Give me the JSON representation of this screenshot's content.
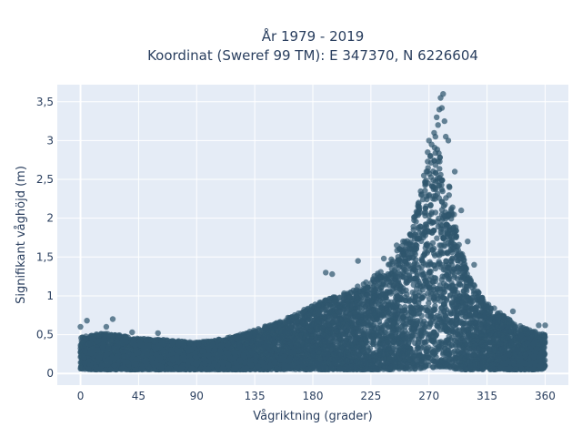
{
  "chart_data": {
    "type": "scatter",
    "title_line1": "År 1979 - 2019",
    "title_line2": "Koordinat (Sweref 99 TM): E 347370, N 6226604",
    "xlabel": "Vågriktning (grader)",
    "ylabel": "Signifikant våghöjd (m)",
    "xlim": [
      -18,
      378
    ],
    "ylim": [
      -0.15,
      3.72
    ],
    "x_ticks": [
      0,
      45,
      90,
      135,
      180,
      225,
      270,
      315,
      360
    ],
    "x_tick_labels": [
      "0",
      "45",
      "90",
      "135",
      "180",
      "225",
      "270",
      "315",
      "360"
    ],
    "y_ticks": [
      0,
      0.5,
      1,
      1.5,
      2,
      2.5,
      3,
      3.5
    ],
    "y_tick_labels": [
      "0",
      "0,5",
      "1",
      "1,5",
      "2",
      "2,5",
      "3",
      "3,5"
    ],
    "grid": true,
    "marker_color": "#2f566e",
    "background_color": "#e5ecf6",
    "envelope": {
      "direction": [
        0,
        10,
        20,
        30,
        45,
        60,
        75,
        90,
        105,
        120,
        135,
        150,
        165,
        180,
        195,
        210,
        225,
        240,
        250,
        260,
        265,
        270,
        275,
        280,
        285,
        290,
        295,
        300,
        310,
        320,
        330,
        340,
        350,
        360
      ],
      "typical_max": [
        0.47,
        0.5,
        0.52,
        0.5,
        0.45,
        0.44,
        0.42,
        0.4,
        0.43,
        0.48,
        0.56,
        0.65,
        0.75,
        0.88,
        0.98,
        1.08,
        1.22,
        1.45,
        1.7,
        2.1,
        2.45,
        2.8,
        2.95,
        2.85,
        2.5,
        2.0,
        1.6,
        1.3,
        1.0,
        0.85,
        0.72,
        0.62,
        0.55,
        0.5
      ],
      "typical_min": [
        0.06,
        0.05,
        0.05,
        0.05,
        0.05,
        0.05,
        0.05,
        0.05,
        0.05,
        0.05,
        0.05,
        0.05,
        0.05,
        0.05,
        0.05,
        0.05,
        0.05,
        0.05,
        0.05,
        0.06,
        0.07,
        0.08,
        0.08,
        0.08,
        0.07,
        0.06,
        0.05,
        0.05,
        0.05,
        0.05,
        0.05,
        0.05,
        0.05,
        0.06
      ]
    },
    "outlier_points": [
      {
        "x": 0,
        "y": 0.6
      },
      {
        "x": 5,
        "y": 0.68
      },
      {
        "x": 20,
        "y": 0.6
      },
      {
        "x": 25,
        "y": 0.7
      },
      {
        "x": 40,
        "y": 0.53
      },
      {
        "x": 60,
        "y": 0.52
      },
      {
        "x": 190,
        "y": 1.3
      },
      {
        "x": 195,
        "y": 1.28
      },
      {
        "x": 215,
        "y": 1.45
      },
      {
        "x": 235,
        "y": 1.48
      },
      {
        "x": 245,
        "y": 1.65
      },
      {
        "x": 250,
        "y": 1.7
      },
      {
        "x": 258,
        "y": 1.85
      },
      {
        "x": 262,
        "y": 2.2
      },
      {
        "x": 264,
        "y": 2.3
      },
      {
        "x": 266,
        "y": 2.55
      },
      {
        "x": 268,
        "y": 2.6
      },
      {
        "x": 269,
        "y": 2.85
      },
      {
        "x": 270,
        "y": 3.0
      },
      {
        "x": 272,
        "y": 2.95
      },
      {
        "x": 274,
        "y": 3.1
      },
      {
        "x": 275,
        "y": 3.05
      },
      {
        "x": 276,
        "y": 3.3
      },
      {
        "x": 277,
        "y": 3.2
      },
      {
        "x": 278,
        "y": 3.4
      },
      {
        "x": 279,
        "y": 3.55
      },
      {
        "x": 280,
        "y": 3.42
      },
      {
        "x": 281,
        "y": 3.6
      },
      {
        "x": 282,
        "y": 3.25
      },
      {
        "x": 283,
        "y": 3.05
      },
      {
        "x": 285,
        "y": 3.0
      },
      {
        "x": 290,
        "y": 2.6
      },
      {
        "x": 295,
        "y": 2.1
      },
      {
        "x": 300,
        "y": 1.7
      },
      {
        "x": 305,
        "y": 1.4
      },
      {
        "x": 335,
        "y": 0.8
      },
      {
        "x": 355,
        "y": 0.62
      },
      {
        "x": 360,
        "y": 0.62
      }
    ]
  }
}
